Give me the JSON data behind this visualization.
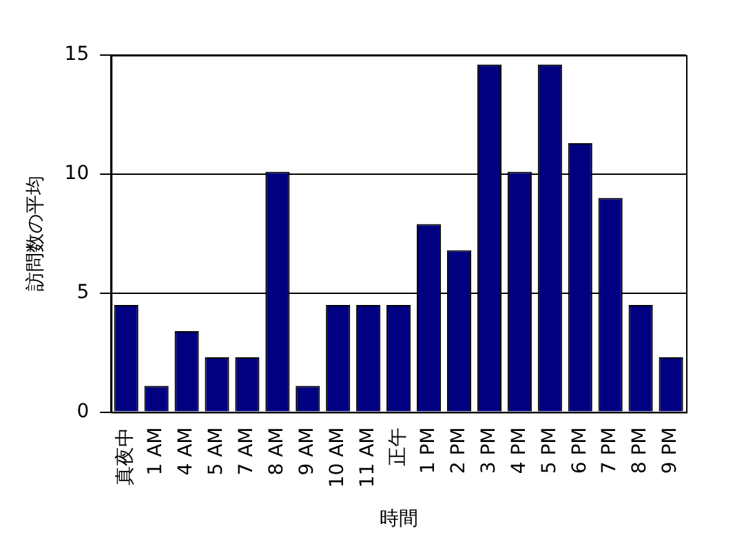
{
  "chart_data": {
    "type": "bar",
    "xlabel": "時間",
    "ylabel": "訪問数の平均",
    "categories": [
      "真夜中",
      "1 AM",
      "4 AM",
      "5 AM",
      "7 AM",
      "8 AM",
      "9 AM",
      "10 AM",
      "11 AM",
      "正午",
      "1 PM",
      "2 PM",
      "3 PM",
      "4 PM",
      "5 PM",
      "6 PM",
      "7 PM",
      "8 PM",
      "9 PM"
    ],
    "values": [
      4.5,
      1.1,
      3.4,
      2.3,
      2.3,
      10.1,
      1.1,
      4.5,
      4.5,
      4.5,
      7.9,
      6.8,
      14.6,
      10.1,
      14.6,
      11.3,
      9,
      4.5,
      2.3
    ],
    "color": "#000080",
    "ylim": [
      0,
      15
    ],
    "yticks": [
      0,
      5,
      10,
      15
    ],
    "grid": "y",
    "legend": false
  }
}
